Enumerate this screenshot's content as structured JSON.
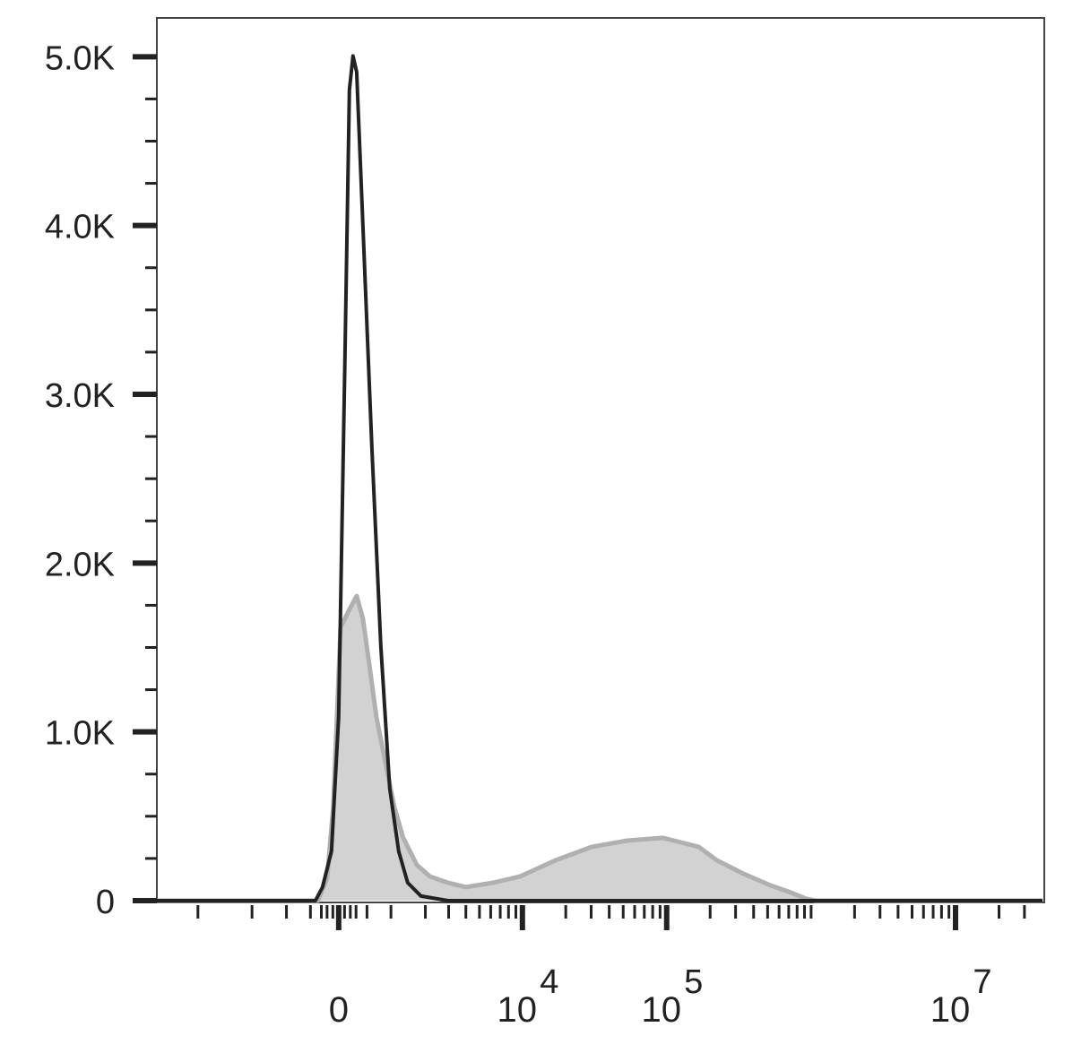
{
  "chart_data": {
    "type": "histogram-line",
    "xscale": "asinh",
    "xscale_cofactor": 1072,
    "xlim": [
      -9700,
      40000000
    ],
    "ylim": [
      0,
      5230
    ],
    "xticks": [
      0,
      {
        "value": 10000,
        "label": "10",
        "exponent": "4"
      },
      {
        "value": 100000,
        "label": "10",
        "exponent": "5"
      },
      {
        "value": 10000000,
        "label": "10",
        "exponent": "7"
      }
    ],
    "xminorticks": [
      -5000,
      -2000,
      -1000,
      -500,
      -300,
      -200,
      -100,
      100,
      200,
      300,
      500,
      1000,
      2000,
      3000,
      4000,
      5000,
      6000,
      7000,
      8000,
      9000,
      20000,
      30000,
      40000,
      50000,
      60000,
      70000,
      80000,
      90000,
      200000,
      300000,
      400000,
      500000,
      600000,
      700000,
      800000,
      900000,
      1000000,
      2000000,
      3000000,
      4000000,
      5000000,
      6000000,
      7000000,
      8000000,
      9000000,
      20000000,
      30000000
    ],
    "yticks": [
      0,
      {
        "value": 1000,
        "label": "1.0K"
      },
      {
        "value": 2000,
        "label": "2.0K"
      },
      {
        "value": 3000,
        "label": "3.0K"
      },
      {
        "value": 4000,
        "label": "4.0K"
      },
      {
        "value": 5000,
        "label": "5.0K"
      }
    ],
    "yminorticks": [
      250,
      500,
      750,
      1250,
      1500,
      1750,
      2250,
      2500,
      2750,
      3250,
      3500,
      3750,
      4250,
      4500,
      4750
    ],
    "series": [
      {
        "color": "#b0b0b0",
        "fill": "#d2d2d2",
        "x": [
          -9700,
          -359,
          -200,
          -92,
          31,
          184,
          311,
          424,
          541,
          683,
          872,
          1077,
          1308,
          1708,
          2176,
          2970,
          4009,
          6228,
          9584,
          16980,
          30120,
          53280,
          94340,
          125600,
          167200,
          222500,
          341400,
          524200,
          697900,
          928400,
          1071000,
          40000000
        ],
        "values": [
          0,
          0,
          133,
          557,
          1619,
          1725,
          1805,
          1672,
          1407,
          1088,
          823,
          557,
          372,
          212,
          143,
          106,
          80,
          106,
          143,
          239,
          318,
          356,
          372,
          345,
          318,
          239,
          159,
          90,
          53,
          11,
          0,
          0
        ]
      },
      {
        "color": "#222222",
        "x": [
          -9700,
          -407,
          -279,
          -123,
          0,
          107,
          184,
          247,
          311,
          424,
          594,
          775,
          972,
          1190,
          1432,
          1849,
          2970,
          40000000
        ],
        "values": [
          0,
          0,
          80,
          292,
          1088,
          3211,
          4804,
          5005,
          4910,
          4008,
          2680,
          1513,
          664,
          292,
          106,
          27,
          0,
          0
        ]
      }
    ]
  }
}
